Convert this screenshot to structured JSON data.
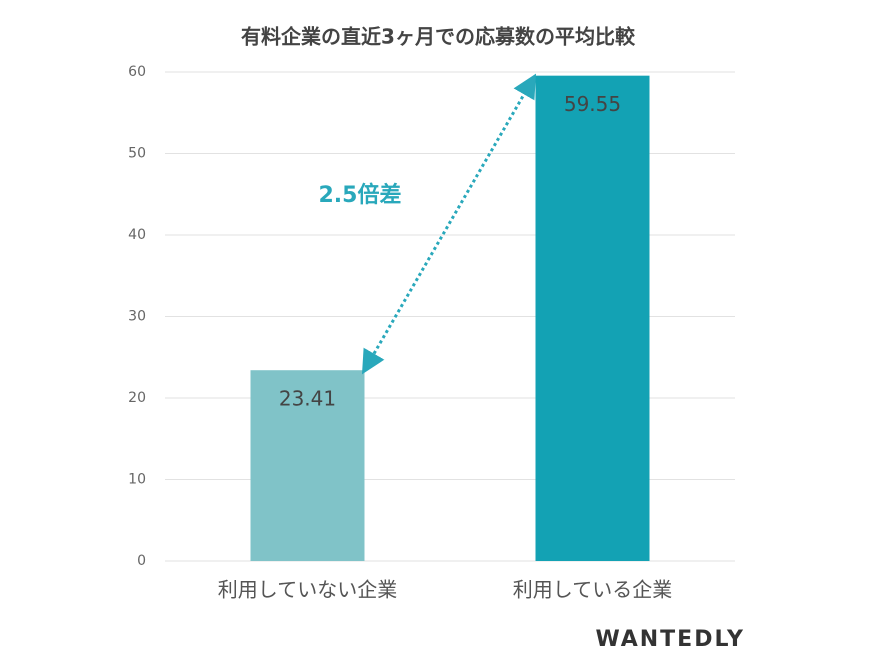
{
  "chart_data": {
    "type": "bar",
    "title": "有料企業の直近3ヶ月での応募数の平均比較",
    "categories": [
      "利用していない企業",
      "利用している企業"
    ],
    "values": [
      23.41,
      59.55
    ],
    "colors": [
      "#80c3c8",
      "#13a2b4"
    ],
    "ylim": [
      0,
      60
    ],
    "yticks": [
      0,
      10,
      20,
      30,
      40,
      50,
      60
    ],
    "grid": true,
    "annotation": "2.5倍差",
    "watermark": "WANTEDLY"
  }
}
